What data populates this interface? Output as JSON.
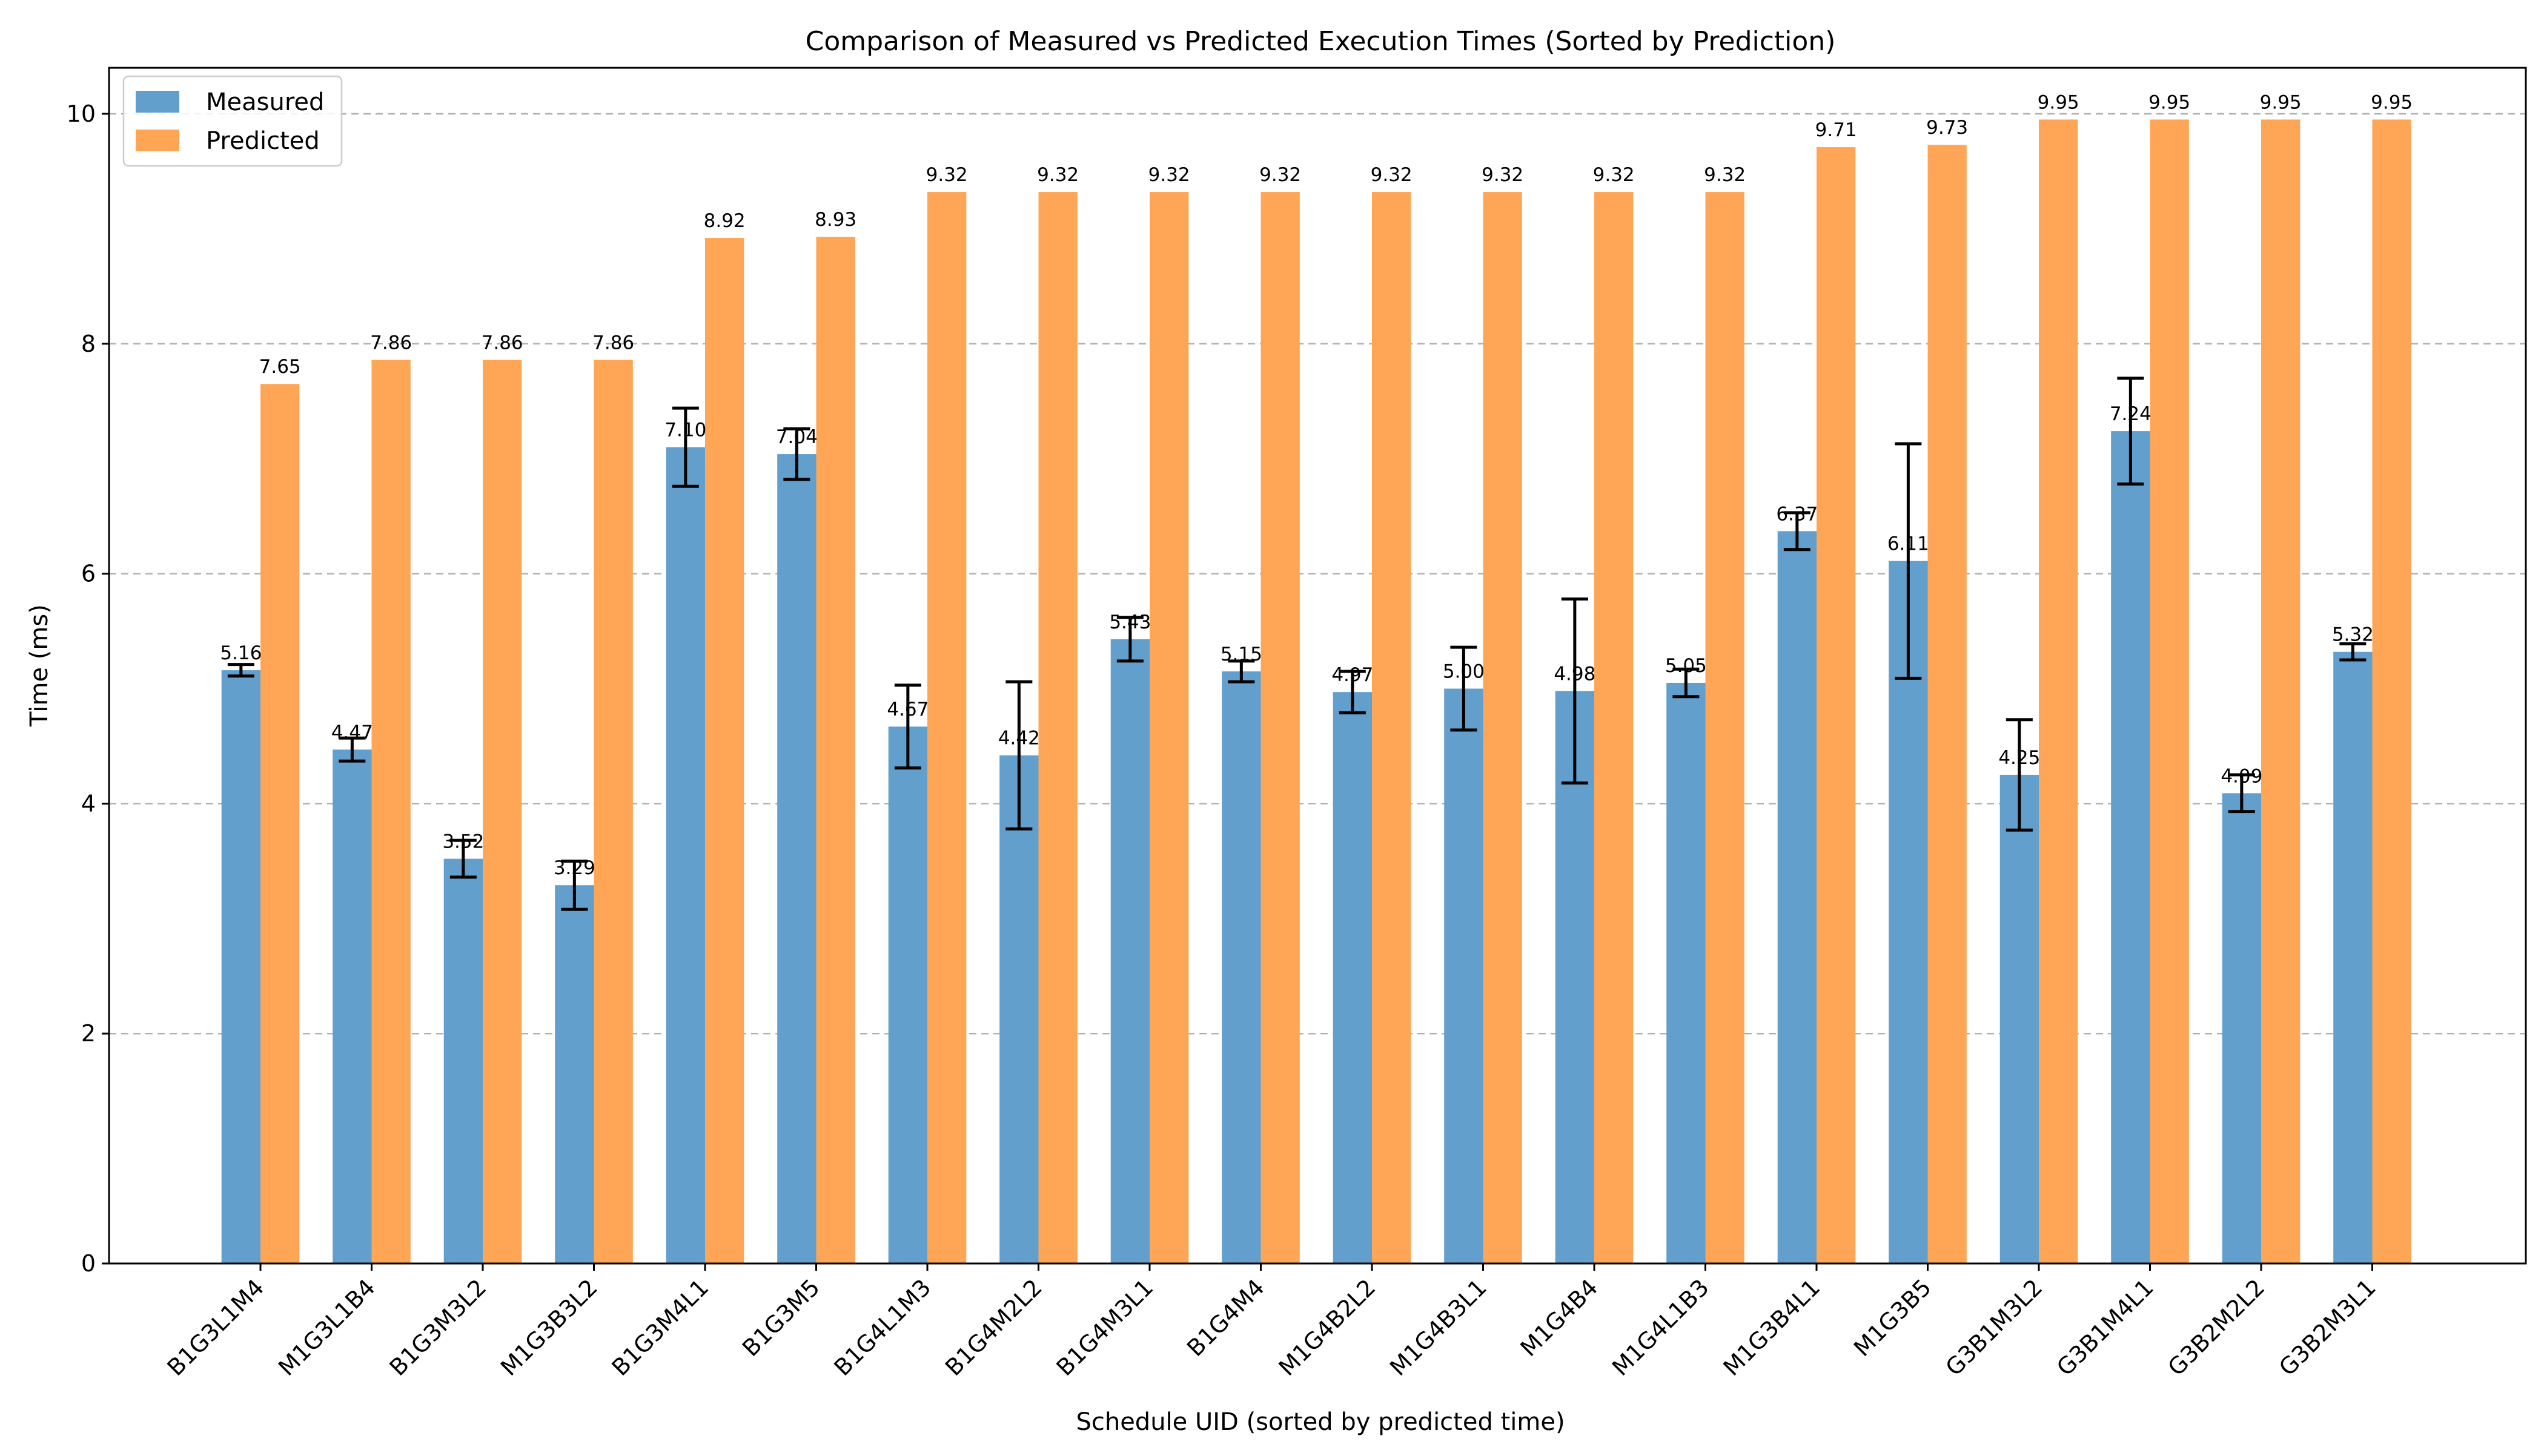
{
  "chart_data": {
    "type": "bar",
    "title": "Comparison of Measured vs Predicted Execution Times (Sorted by Prediction)",
    "xlabel": "Schedule UID (sorted by predicted time)",
    "ylabel": "Time (ms)",
    "ylim": [
      0,
      10.4
    ],
    "yticks": [
      0,
      2,
      4,
      6,
      8,
      10
    ],
    "grid": true,
    "legend": "top-left",
    "categories": [
      "B1G3L1M4",
      "M1G3L1B4",
      "B1G3M3L2",
      "M1G3B3L2",
      "B1G3M4L1",
      "B1G3M5",
      "B1G4L1M3",
      "B1G4M2L2",
      "B1G4M3L1",
      "B1G4M4",
      "M1G4B2L2",
      "M1G4B3L1",
      "M1G4B4",
      "M1G4L1B3",
      "M1G3B4L1",
      "M1G3B5",
      "G3B1M3L2",
      "G3B1M4L1",
      "G3B2M2L2",
      "G3B2M3L1"
    ],
    "series": [
      {
        "name": "Measured",
        "color": "#639fcc",
        "values": [
          5.16,
          4.47,
          3.52,
          3.29,
          7.1,
          7.04,
          4.67,
          4.42,
          5.43,
          5.15,
          4.97,
          5.0,
          4.98,
          5.05,
          6.37,
          6.11,
          4.25,
          7.24,
          4.09,
          5.32
        ],
        "labels": [
          "5.16",
          "4.47",
          "3.52",
          "3.29",
          "7.10",
          "7.04",
          "4.67",
          "4.42",
          "5.43",
          "5.15",
          "4.97",
          "5.00",
          "4.98",
          "5.05",
          "6.37",
          "6.11",
          "4.25",
          "7.24",
          "4.09",
          "5.32"
        ],
        "errors": [
          0.05,
          0.1,
          0.16,
          0.21,
          0.34,
          0.22,
          0.36,
          0.64,
          0.19,
          0.09,
          0.18,
          0.36,
          0.8,
          0.12,
          0.16,
          1.02,
          0.48,
          0.46,
          0.16,
          0.07
        ]
      },
      {
        "name": "Predicted",
        "color": "#fea655",
        "values": [
          7.65,
          7.86,
          7.86,
          7.86,
          8.92,
          8.93,
          9.32,
          9.32,
          9.32,
          9.32,
          9.32,
          9.32,
          9.32,
          9.32,
          9.71,
          9.73,
          9.95,
          9.95,
          9.95,
          9.95
        ],
        "labels": [
          "7.65",
          "7.86",
          "7.86",
          "7.86",
          "8.92",
          "8.93",
          "9.32",
          "9.32",
          "9.32",
          "9.32",
          "9.32",
          "9.32",
          "9.32",
          "9.32",
          "9.71",
          "9.73",
          "9.95",
          "9.95",
          "9.95",
          "9.95"
        ]
      }
    ]
  }
}
